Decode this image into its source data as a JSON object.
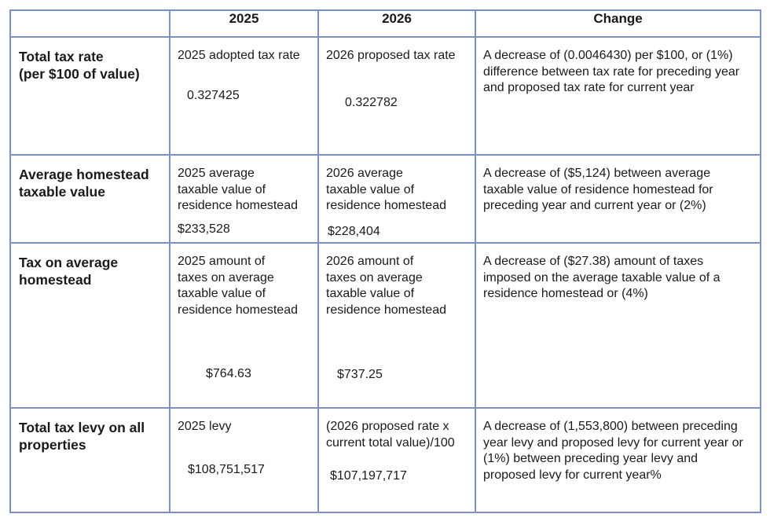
{
  "header": {
    "blank": "",
    "col_2025": "2025",
    "col_2026": "2026",
    "col_change": "Change"
  },
  "rows": [
    {
      "label": "Total tax rate\n(per $100 of value)",
      "y2025_desc": "2025 adopted tax rate",
      "y2025_value": "0.327425",
      "y2026_desc": "2026 proposed tax rate",
      "y2026_value": "0.322782",
      "change": "A decrease of (0.0046430) per $100, or (1%) difference between tax rate for preceding year and proposed tax rate for current year"
    },
    {
      "label": "Average homestead\ntaxable value",
      "y2025_desc": "2025 average\ntaxable value of\nresidence homestead",
      "y2025_value": "$233,528",
      "y2026_desc": "2026 average\ntaxable value of\nresidence homestead",
      "y2026_value": "$228,404",
      "change": "A decrease of ($5,124) between average taxable value of residence homestead for preceding year and current year or (2%)"
    },
    {
      "label": "Tax on average\nhomestead",
      "y2025_desc": "2025 amount of\ntaxes on average\ntaxable value of\nresidence homestead",
      "y2025_value": "$764.63",
      "y2026_desc": "2026 amount of\ntaxes on average\ntaxable value of\nresidence homestead",
      "y2026_value": "$737.25",
      "change": "A decrease of ($27.38) amount of taxes imposed on the average taxable value of a residence homestead or (4%)"
    },
    {
      "label": "Total tax levy on all\nproperties",
      "y2025_desc": "2025 levy",
      "y2025_value": "$108,751,517",
      "y2026_desc": "(2026 proposed rate x\ncurrent total value)/100",
      "y2026_value": "$107,197,717",
      "change": "A decrease of (1,553,800) between preceding year levy and proposed levy for current year or (1%) between preceding year levy and proposed levy for current year%"
    }
  ]
}
